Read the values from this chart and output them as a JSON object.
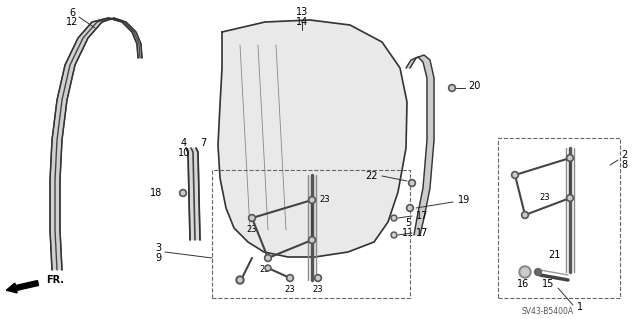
{
  "bg_color": "#ffffff",
  "line_color": "#333333",
  "diagram_code": "SV43-B5400A"
}
